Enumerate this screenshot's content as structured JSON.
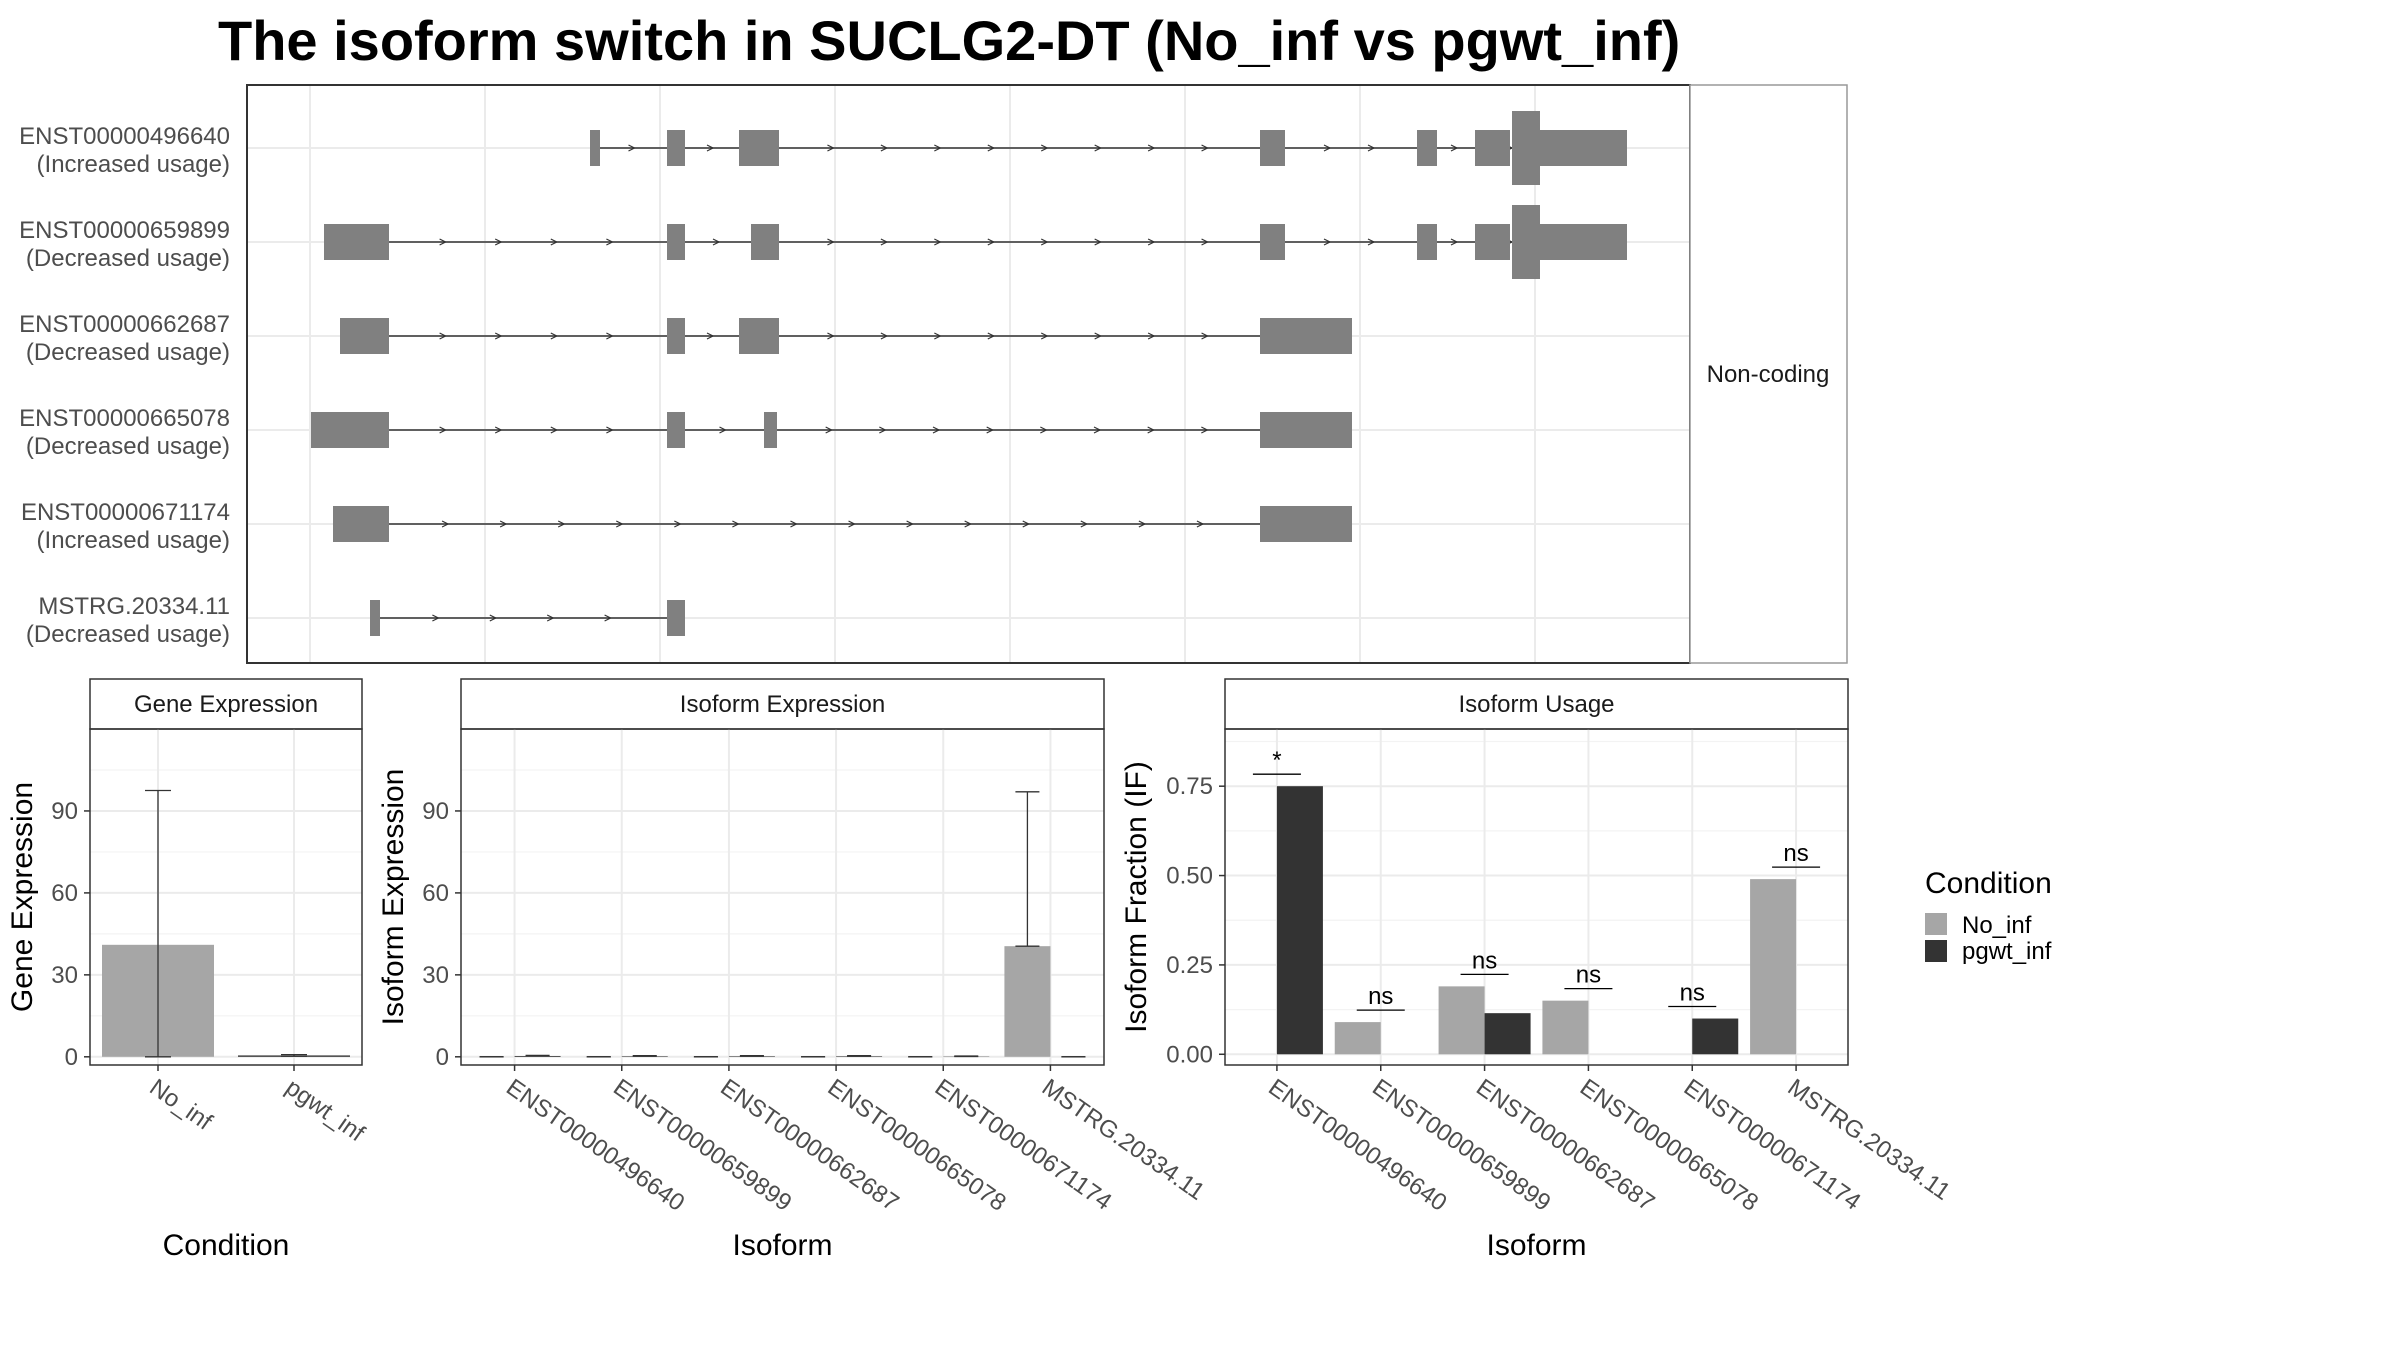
{
  "title": "The isoform switch in SUCLG2-DT (No_inf vs pgwt_inf)",
  "colors": {
    "exon": "#808080",
    "no_inf": "#a6a6a6",
    "pgwt_inf": "#333333",
    "grid": "#ebebeb",
    "panel_border": "#333333",
    "strip_bg": "#ffffff"
  },
  "chart_data": [
    {
      "type": "isoform-structure",
      "facet_label": "Non-coding",
      "isoforms": [
        {
          "id": "ENST00000496640",
          "usage": "(Increased usage)"
        },
        {
          "id": "ENST00000659899",
          "usage": "(Decreased usage)"
        },
        {
          "id": "ENST00000662687",
          "usage": "(Decreased usage)"
        },
        {
          "id": "ENST00000665078",
          "usage": "(Decreased usage)"
        },
        {
          "id": "ENST00000671174",
          "usage": "(Increased usage)"
        },
        {
          "id": "MSTRG.20334.11",
          "usage": "(Decreased usage)"
        }
      ]
    },
    {
      "type": "bar",
      "title": "Gene Expression",
      "xlabel": "Condition",
      "ylabel": "Gene Expression",
      "categories": [
        "No_inf",
        "pgwt_inf"
      ],
      "values": [
        41,
        0.5
      ],
      "error_upper": [
        97.5,
        0.8
      ],
      "error_lower": [
        0,
        0.2
      ],
      "yticks": [
        0,
        30,
        60,
        90
      ],
      "ylim": [
        -3,
        120
      ]
    },
    {
      "type": "bar",
      "title": "Isoform Expression",
      "xlabel": "Isoform",
      "ylabel": "Isoform Expression",
      "categories": [
        "ENST00000496640",
        "ENST00000659899",
        "ENST00000662687",
        "ENST00000665078",
        "ENST00000671174",
        "MSTRG.20334.11"
      ],
      "series": [
        {
          "name": "No_inf",
          "values": [
            0,
            0,
            0,
            0,
            0,
            40.5
          ],
          "error_upper": [
            0,
            0,
            0,
            0,
            0,
            97
          ]
        },
        {
          "name": "pgwt_inf",
          "values": [
            0.3,
            0.2,
            0.2,
            0.2,
            0.1,
            0
          ],
          "error_upper": [
            0.5,
            0.4,
            0.4,
            0.4,
            0.3,
            0
          ]
        }
      ],
      "yticks": [
        0,
        30,
        60,
        90
      ],
      "ylim": [
        -3,
        120
      ]
    },
    {
      "type": "bar",
      "title": "Isoform Usage",
      "xlabel": "Isoform",
      "ylabel": "Isoform Fraction (IF)",
      "categories": [
        "ENST00000496640",
        "ENST00000659899",
        "ENST00000662687",
        "ENST00000665078",
        "ENST00000671174",
        "MSTRG.20334.11"
      ],
      "series": [
        {
          "name": "No_inf",
          "values": [
            0,
            0.09,
            0.19,
            0.15,
            0,
            0.49
          ]
        },
        {
          "name": "pgwt_inf",
          "values": [
            0.75,
            0,
            0.115,
            0,
            0.1,
            0
          ]
        }
      ],
      "significance": [
        "*",
        "ns",
        "ns",
        "ns",
        "ns",
        "ns"
      ],
      "yticks": [
        "0.00",
        "0.25",
        "0.50",
        "0.75"
      ],
      "ylim": [
        -0.03,
        0.91
      ]
    }
  ],
  "legend": {
    "title": "Condition",
    "entries": [
      "No_inf",
      "pgwt_inf"
    ]
  }
}
